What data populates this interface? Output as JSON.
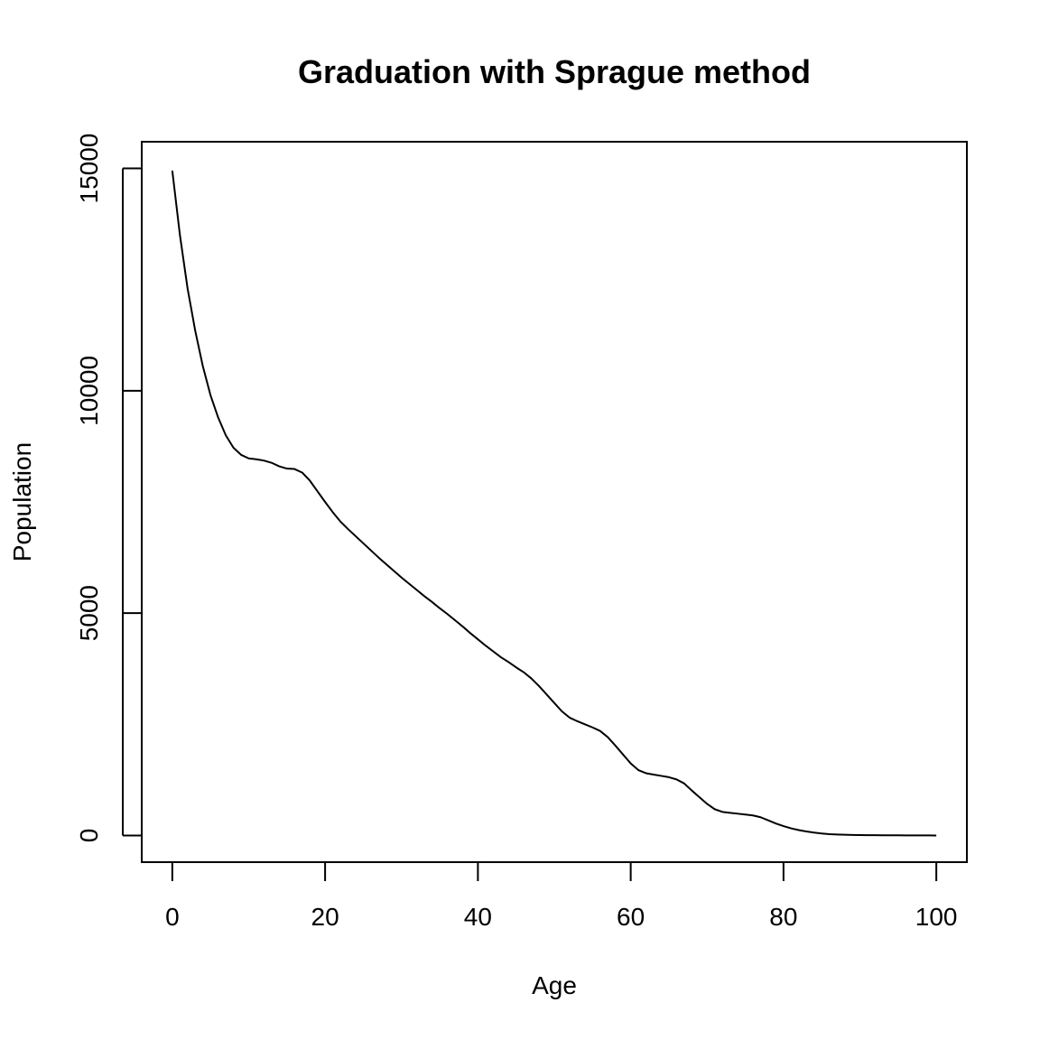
{
  "chart_data": {
    "type": "line",
    "title": "Graduation with Sprague method",
    "xlabel": "Age",
    "ylabel": "Population",
    "xlim": [
      -4,
      104
    ],
    "ylim": [
      -600,
      15600
    ],
    "x_ticks": [
      0,
      20,
      40,
      60,
      80,
      100
    ],
    "x_tick_labels": [
      "0",
      "20",
      "40",
      "60",
      "80",
      "100"
    ],
    "y_ticks": [
      0,
      5000,
      10000,
      15000
    ],
    "y_tick_labels": [
      "0",
      "5000",
      "10000",
      "15000"
    ],
    "grid": false,
    "series": [
      {
        "color": "#000000",
        "x": [
          0,
          1,
          2,
          3,
          4,
          5,
          6,
          7,
          8,
          9,
          10,
          11,
          12,
          13,
          14,
          15,
          16,
          17,
          18,
          19,
          20,
          21,
          22,
          23,
          24,
          25,
          26,
          27,
          28,
          29,
          30,
          31,
          32,
          33,
          34,
          35,
          36,
          37,
          38,
          39,
          40,
          41,
          42,
          43,
          44,
          45,
          46,
          47,
          48,
          49,
          50,
          51,
          52,
          53,
          54,
          55,
          56,
          57,
          58,
          59,
          60,
          61,
          62,
          63,
          64,
          65,
          66,
          67,
          68,
          69,
          70,
          71,
          72,
          73,
          74,
          75,
          76,
          77,
          78,
          79,
          80,
          81,
          82,
          83,
          84,
          85,
          86,
          87,
          88,
          89,
          90,
          91,
          92,
          93,
          94,
          95,
          96,
          97,
          98,
          99,
          100
        ],
        "y": [
          14950,
          13500,
          12300,
          11350,
          10550,
          9900,
          9400,
          9000,
          8720,
          8560,
          8480,
          8460,
          8430,
          8380,
          8300,
          8250,
          8240,
          8160,
          7980,
          7740,
          7500,
          7270,
          7060,
          6890,
          6730,
          6570,
          6410,
          6250,
          6100,
          5950,
          5800,
          5660,
          5520,
          5380,
          5250,
          5110,
          4980,
          4840,
          4700,
          4550,
          4410,
          4270,
          4140,
          4010,
          3900,
          3780,
          3670,
          3530,
          3360,
          3170,
          2980,
          2790,
          2650,
          2570,
          2500,
          2430,
          2350,
          2210,
          2020,
          1820,
          1620,
          1470,
          1400,
          1370,
          1340,
          1310,
          1260,
          1170,
          1010,
          860,
          710,
          590,
          530,
          510,
          490,
          470,
          450,
          410,
          340,
          270,
          210,
          160,
          120,
          90,
          65,
          45,
          30,
          22,
          16,
          12,
          9,
          7,
          6,
          5,
          4,
          3,
          2,
          2,
          1,
          1,
          0
        ]
      }
    ]
  }
}
